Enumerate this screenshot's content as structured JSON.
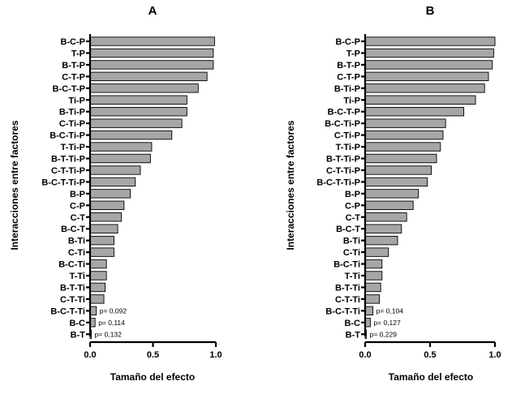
{
  "chart_data": [
    {
      "type": "bar",
      "orientation": "horizontal",
      "title": "A",
      "xlabel": "Tamaño del efecto",
      "ylabel": "Interacciones entre factores",
      "xlim": [
        0.0,
        1.0
      ],
      "xticks": [
        "0.0",
        "0.5",
        "1.0"
      ],
      "categories": [
        "B-C-P",
        "T-P",
        "B-T-P",
        "C-T-P",
        "B-C-T-P",
        "Ti-P",
        "B-Ti-P",
        "C-Ti-P",
        "B-C-Ti-P",
        "T-Ti-P",
        "B-T-Ti-P",
        "C-T-Ti-P",
        "B-C-T-Ti-P",
        "B-P",
        "C-P",
        "C-T",
        "B-C-T",
        "B-Ti",
        "C-Ti",
        "B-C-Ti",
        "T-Ti",
        "B-T-Ti",
        "C-T-Ti",
        "B-C-T-Ti",
        "B-C",
        "B-T"
      ],
      "values": [
        0.99,
        0.98,
        0.98,
        0.93,
        0.86,
        0.77,
        0.77,
        0.73,
        0.65,
        0.49,
        0.48,
        0.4,
        0.36,
        0.32,
        0.27,
        0.25,
        0.22,
        0.19,
        0.19,
        0.13,
        0.13,
        0.12,
        0.11,
        0.05,
        0.04,
        0.01
      ],
      "annotations": [
        {
          "category": "B-C-T-Ti",
          "text": "p= 0,092"
        },
        {
          "category": "B-C",
          "text": "p= 0,114"
        },
        {
          "category": "B-T",
          "text": "p= 0,132"
        }
      ]
    },
    {
      "type": "bar",
      "orientation": "horizontal",
      "title": "B",
      "xlabel": "Tamaño del efecto",
      "ylabel": "Interacciones entre factores",
      "xlim": [
        0.0,
        1.0
      ],
      "xticks": [
        "0.0",
        "0.5",
        "1.0"
      ],
      "categories": [
        "B-C-P",
        "T-P",
        "B-T-P",
        "C-T-P",
        "B-Ti-P",
        "Ti-P",
        "B-C-T-P",
        "B-C-Ti-P",
        "C-Ti-P",
        "T-Ti-P",
        "B-T-Ti-P",
        "C-T-Ti-P",
        "B-C-T-Ti-P",
        "B-P",
        "C-P",
        "C-T",
        "B-C-T",
        "B-Ti",
        "C-Ti",
        "B-C-Ti",
        "T-Ti",
        "B-T-Ti",
        "C-T-Ti",
        "B-C-T-Ti",
        "B-C",
        "B-T"
      ],
      "values": [
        1.0,
        0.99,
        0.98,
        0.95,
        0.92,
        0.85,
        0.76,
        0.62,
        0.6,
        0.58,
        0.55,
        0.51,
        0.48,
        0.41,
        0.37,
        0.32,
        0.28,
        0.25,
        0.18,
        0.13,
        0.13,
        0.12,
        0.11,
        0.06,
        0.04,
        0.01
      ],
      "annotations": [
        {
          "category": "B-C-T-Ti",
          "text": "p= 0,104"
        },
        {
          "category": "B-C",
          "text": "p= 0,127"
        },
        {
          "category": "B-T",
          "text": "p= 0,229"
        }
      ]
    }
  ]
}
